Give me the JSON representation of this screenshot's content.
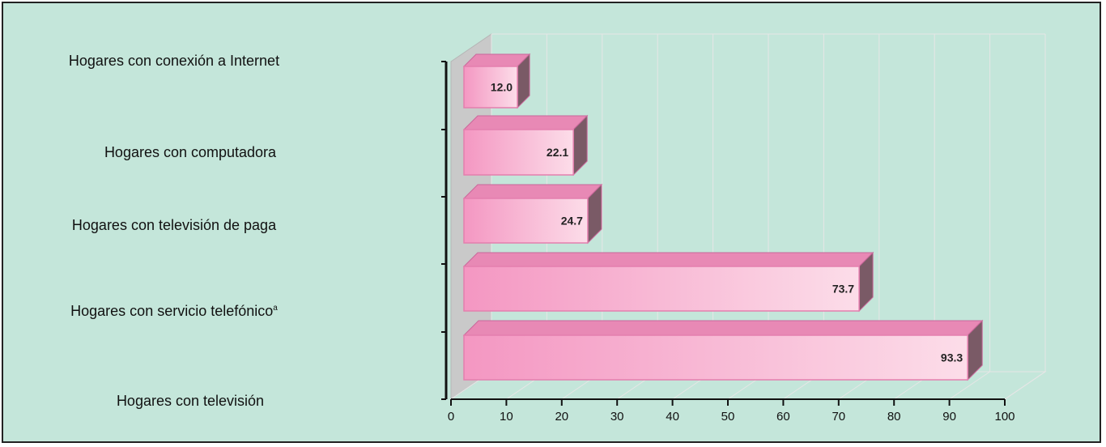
{
  "chart_data": {
    "type": "bar",
    "orientation": "horizontal",
    "style": "3d",
    "categories": [
      "Hogares con conexión a Internet",
      "Hogares con computadora",
      "Hogares con televisión de paga",
      "Hogares con servicio telefónico",
      "Hogares con televisión"
    ],
    "category_superscripts": [
      "",
      "",
      "",
      "a",
      ""
    ],
    "values": [
      12.0,
      22.1,
      24.7,
      73.7,
      93.3
    ],
    "value_labels": [
      "12.0",
      "22.1",
      "24.7",
      "73.7",
      "93.3"
    ],
    "xlim": [
      0,
      100
    ],
    "xticks": [
      0,
      10,
      20,
      30,
      40,
      50,
      60,
      70,
      80,
      90,
      100
    ],
    "grid": true,
    "title": "",
    "xlabel": "",
    "ylabel": ""
  },
  "colors": {
    "background": "#c4e6da",
    "bar_front_dark": "#f497c2",
    "bar_front_light": "#fcdde9",
    "bar_top": "#e889b5",
    "bar_side": "#7a5a66",
    "wall": "#c9c9c9",
    "grid": "#e6e6e6"
  }
}
